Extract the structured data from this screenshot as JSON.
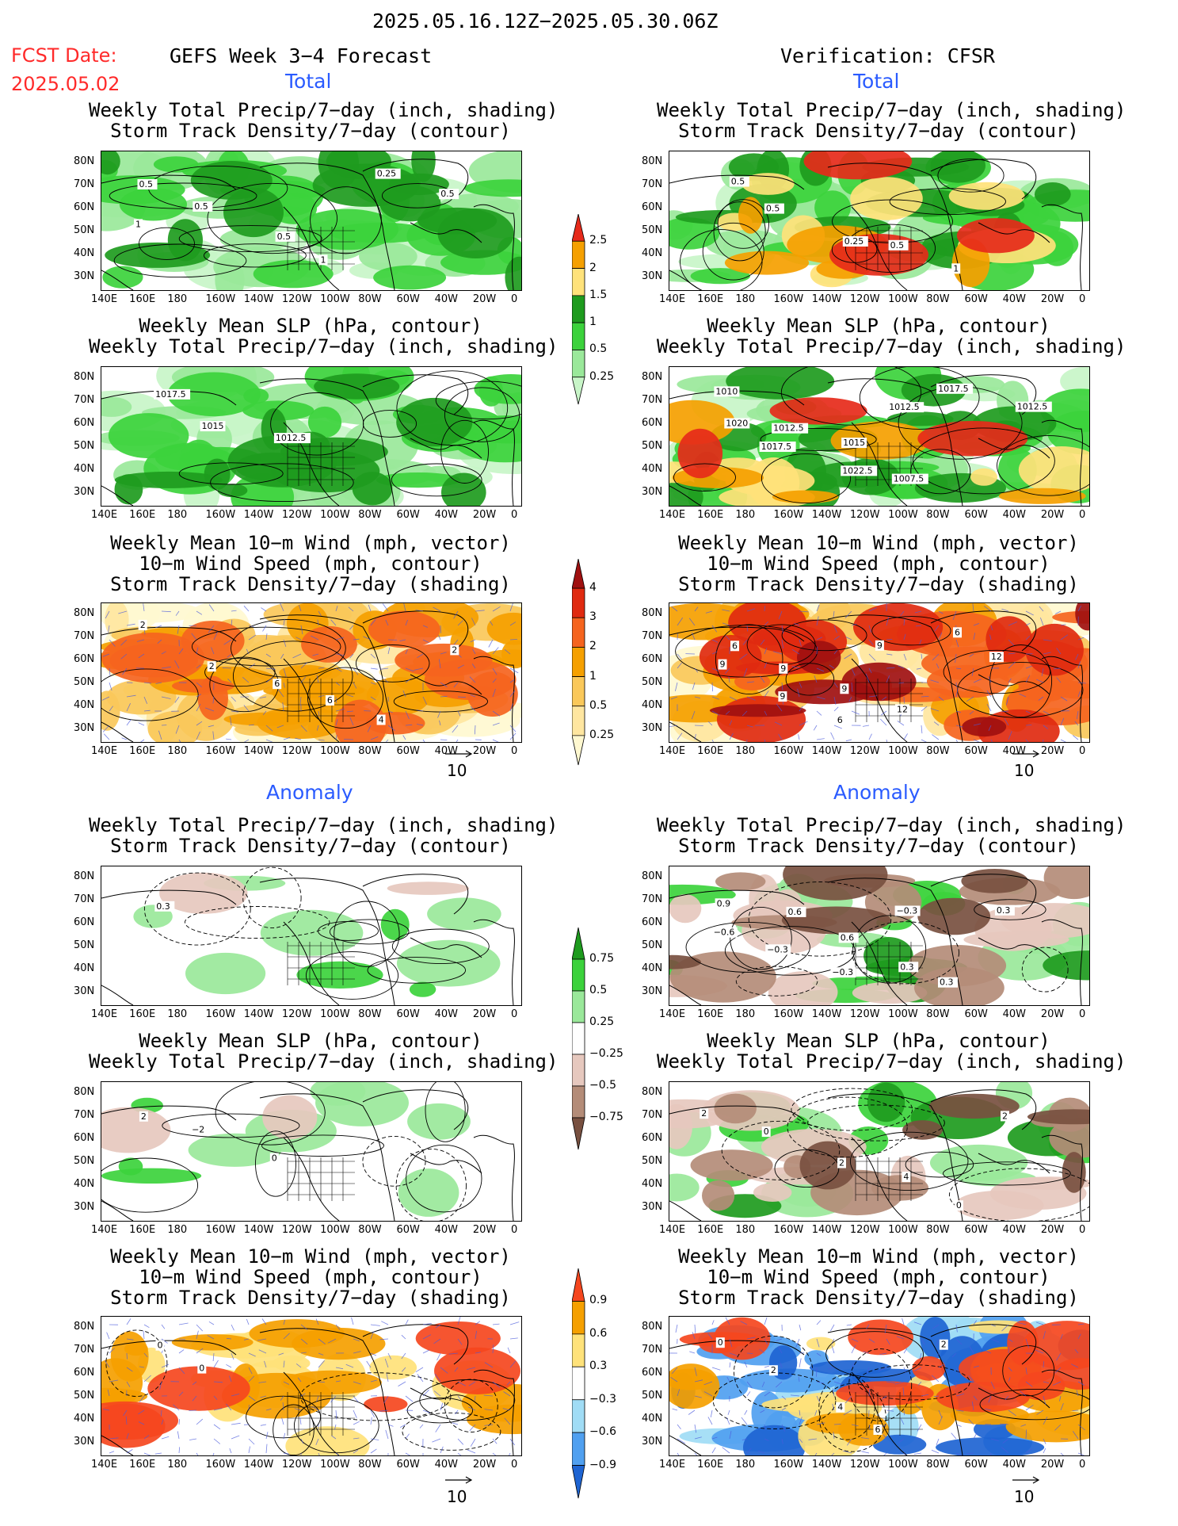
{
  "header": {
    "date_range": "2025.05.16.12Z−2025.05.30.06Z",
    "fcst_label": "FCST Date:",
    "fcst_date": "2025.05.02",
    "left_title": "GEFS Week 3−4 Forecast",
    "right_title": "Verification: CFSR"
  },
  "sections": {
    "total": "Total",
    "anomaly": "Anomaly"
  },
  "panel_titles": {
    "p1": [
      "Weekly Total Precip/7−day (inch, shading)",
      "Storm Track Density/7−day (contour)"
    ],
    "p2": [
      "Weekly Mean SLP (hPa, contour)",
      "Weekly Total Precip/7−day (inch, shading)"
    ],
    "p3": [
      "Weekly Mean 10−m Wind (mph, vector)",
      "10−m Wind Speed (mph, contour)",
      "Storm Track Density/7−day (shading)"
    ]
  },
  "axes": {
    "lat": [
      "80N",
      "70N",
      "60N",
      "50N",
      "40N",
      "30N"
    ],
    "lon": [
      "140E",
      "160E",
      "180",
      "160W",
      "140W",
      "120W",
      "100W",
      "80W",
      "60W",
      "40W",
      "20W",
      "0"
    ]
  },
  "vector_ref": "10",
  "colorbars": {
    "precip_total": {
      "labels": [
        "2.5",
        "2",
        "1.5",
        "1",
        "0.5",
        "0.25"
      ],
      "colors": [
        "#e62a1a",
        "#f5a000",
        "#ffe27a",
        "#1e9b1e",
        "#3cd23c",
        "#9ae89a",
        "#c8f5c8"
      ]
    },
    "storm_total": {
      "labels": [
        "4",
        "3",
        "2",
        "1",
        "0.5",
        "0.25"
      ],
      "colors": [
        "#a01010",
        "#e02a10",
        "#f5641e",
        "#f5a000",
        "#fac85a",
        "#ffe6a0",
        "#fff8d0"
      ]
    },
    "precip_anom": {
      "labels": [
        "0.75",
        "0.5",
        "0.25",
        "−0.25",
        "−0.5",
        "−0.75"
      ],
      "colors": [
        "#1e9b1e",
        "#3cd23c",
        "#9ae89a",
        "#ffffff",
        "#e6c8be",
        "#b48c78",
        "#785040"
      ]
    },
    "storm_anom": {
      "labels": [
        "0.9",
        "0.6",
        "0.3",
        "−0.3",
        "−0.6",
        "−0.9"
      ],
      "colors": [
        "#f5461e",
        "#f5a000",
        "#ffe27a",
        "#ffffff",
        "#a0dcf5",
        "#50a0f0",
        "#1e64d2"
      ]
    }
  },
  "map_labels": {
    "L1": [
      "0.5",
      "0.5",
      "0.5",
      "1",
      "0.25",
      "0.5",
      "1"
    ],
    "R1": [
      "0.5",
      "0.5",
      "0.25",
      "0.5",
      "1"
    ],
    "L2": [
      "1017.5",
      "1015",
      "1012.5"
    ],
    "R2": [
      "1010",
      "1012.5",
      "1015",
      "1007.5",
      "1017.5",
      "1012.5",
      "1020",
      "1017.5",
      "1022.5",
      "1012.5"
    ],
    "L3": [
      "2",
      "2",
      "6",
      "6",
      "4",
      "2"
    ],
    "R3": [
      "6",
      "9",
      "9",
      "12",
      "6",
      "12",
      "9",
      "9",
      "6",
      "9"
    ],
    "L4": [
      "0.3"
    ],
    "R4": [
      "0.9",
      "0.6",
      "0.6",
      "0.3",
      "0.3",
      "0.3",
      "−0.6",
      "−0.3",
      "−0.3",
      "−0.3"
    ],
    "L5": [
      "2",
      "−2",
      "0"
    ],
    "R5": [
      "2",
      "0",
      "2",
      "4",
      "0",
      "2"
    ],
    "L6": [
      "0",
      "0"
    ],
    "R6": [
      "0",
      "2",
      "4",
      "6",
      "2"
    ]
  },
  "colors": {
    "date_red": "#ff2a2a",
    "section_blue": "#2a5bff",
    "vector_blue": "#4a5adc"
  }
}
